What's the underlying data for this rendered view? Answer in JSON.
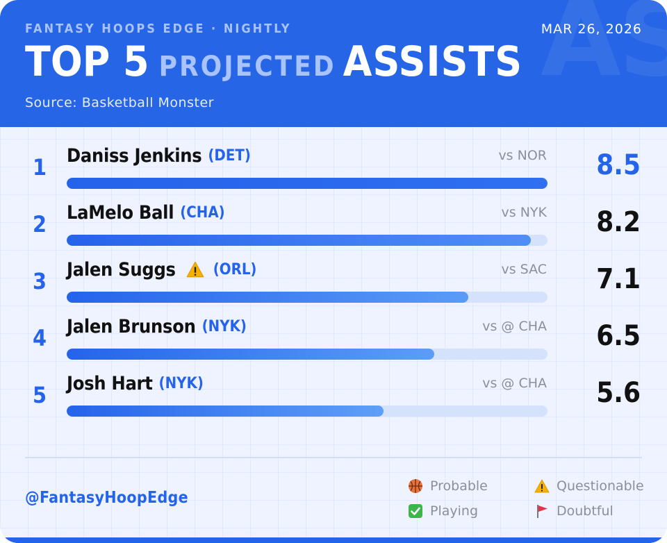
{
  "header": {
    "brand": "FANTASY HOOPS EDGE · NIGHTLY",
    "date": "MAR 26, 2026",
    "title_part1": "TOP 5",
    "title_part2": "PROJECTED",
    "title_part3": "ASSISTS",
    "watermark": "AST",
    "source": "Source: Basketball Monster",
    "background_color": "#2666e6",
    "accent_color": "#2563eb"
  },
  "chart_data": {
    "type": "bar",
    "orientation": "horizontal",
    "xlim": [
      0,
      8.5
    ],
    "rows": [
      {
        "rank": "1",
        "name": "Daniss Jenkins",
        "team": "(DET)",
        "opponent": "vs NOR",
        "value": 8.5,
        "value_label": "8.5",
        "status_icon": null
      },
      {
        "rank": "2",
        "name": "LaMelo Ball",
        "team": "(CHA)",
        "opponent": "vs NYK",
        "value": 8.2,
        "value_label": "8.2",
        "status_icon": null
      },
      {
        "rank": "3",
        "name": "Jalen Suggs",
        "team": "(ORL)",
        "opponent": "vs SAC",
        "value": 7.1,
        "value_label": "7.1",
        "status_icon": "warning-icon"
      },
      {
        "rank": "4",
        "name": "Jalen Brunson",
        "team": "(NYK)",
        "opponent": "vs @ CHA",
        "value": 6.5,
        "value_label": "6.5",
        "status_icon": null
      },
      {
        "rank": "5",
        "name": "Josh Hart",
        "team": "(NYK)",
        "opponent": "vs @ CHA",
        "value": 5.6,
        "value_label": "5.6",
        "status_icon": null
      }
    ]
  },
  "footer": {
    "handle": "@FantasyHoopEdge",
    "legend": [
      {
        "icon": "basketball-icon",
        "label": "Probable"
      },
      {
        "icon": "warning-icon",
        "label": "Questionable"
      },
      {
        "icon": "check-icon",
        "label": "Playing"
      },
      {
        "icon": "flag-icon",
        "label": "Doubtful"
      }
    ]
  }
}
